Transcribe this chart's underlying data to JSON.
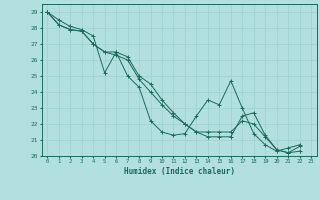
{
  "xlabel": "Humidex (Indice chaleur)",
  "bg_color": "#b2dfdf",
  "line_color": "#1a6b5a",
  "grid_color": "#a0d0d0",
  "xlim": [
    -0.5,
    23.5
  ],
  "ylim": [
    20,
    29.5
  ],
  "xticks": [
    0,
    1,
    2,
    3,
    4,
    5,
    6,
    7,
    8,
    9,
    10,
    11,
    12,
    13,
    14,
    15,
    16,
    17,
    18,
    19,
    20,
    21,
    22,
    23
  ],
  "yticks": [
    20,
    21,
    22,
    23,
    24,
    25,
    26,
    27,
    28,
    29
  ],
  "series1": [
    29.0,
    28.5,
    28.1,
    27.9,
    27.5,
    25.2,
    26.5,
    25.0,
    24.3,
    22.2,
    21.5,
    21.3,
    21.4,
    22.5,
    23.5,
    23.2,
    24.7,
    23.0,
    21.4,
    20.7,
    20.3,
    20.5,
    20.7
  ],
  "series2": [
    29.0,
    28.2,
    27.9,
    27.8,
    27.0,
    26.5,
    26.5,
    26.2,
    25.0,
    24.5,
    23.5,
    22.7,
    22.0,
    21.5,
    21.2,
    21.2,
    21.2,
    22.5,
    22.7,
    21.3,
    20.4,
    20.2,
    20.3
  ],
  "series3": [
    29.0,
    28.2,
    27.9,
    27.8,
    27.0,
    26.5,
    26.3,
    26.0,
    24.8,
    24.0,
    23.2,
    22.5,
    22.0,
    21.5,
    21.5,
    21.5,
    21.5,
    22.2,
    22.0,
    21.2,
    20.4,
    20.2,
    20.6
  ]
}
